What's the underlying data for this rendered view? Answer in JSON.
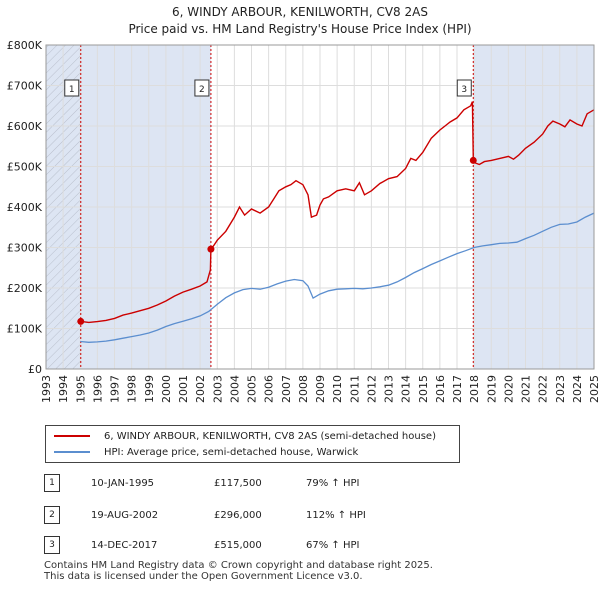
{
  "title_line1": "6, WINDY ARBOUR, KENILWORTH, CV8 2AS",
  "title_line2": "Price paid vs. HM Land Registry's House Price Index (HPI)",
  "colors": {
    "price": "#cc0000",
    "hpi": "#5b8ecf",
    "shade": "#dde5f3",
    "grid": "#dddddd",
    "marker_line": "#cc0000"
  },
  "chart_data": {
    "type": "line",
    "xlim": [
      1993,
      2025
    ],
    "ylim": [
      0,
      800000
    ],
    "y_ticks": [
      0,
      100000,
      200000,
      300000,
      400000,
      500000,
      600000,
      700000,
      800000
    ],
    "y_tick_labels": [
      "£0",
      "£100K",
      "£200K",
      "£300K",
      "£400K",
      "£500K",
      "£600K",
      "£700K",
      "£800K"
    ],
    "x_tick_labels": [
      "1993",
      "1994",
      "1995",
      "1996",
      "1997",
      "1998",
      "1999",
      "2000",
      "2001",
      "2002",
      "2003",
      "2004",
      "2005",
      "2006",
      "2007",
      "2008",
      "2009",
      "2010",
      "2011",
      "2012",
      "2013",
      "2014",
      "2015",
      "2016",
      "2017",
      "2018",
      "2019",
      "2020",
      "2021",
      "2022",
      "2023",
      "2024",
      "2025"
    ],
    "grid": true,
    "shaded_ranges": [
      [
        1993,
        1995.03
      ],
      [
        1995.03,
        2002.63
      ],
      [
        2017.95,
        2025
      ]
    ],
    "hatched_ranges": [
      [
        1993,
        1995.03
      ]
    ],
    "series": [
      {
        "name": "6, WINDY ARBOUR, KENILWORTH, CV8 2AS (semi-detached house)",
        "x": [
          1995.03,
          1995.5,
          1996,
          1996.5,
          1997,
          1997.5,
          1998,
          1998.5,
          1999,
          1999.5,
          2000,
          2000.5,
          2001,
          2001.5,
          2002,
          2002.4,
          2002.6,
          2002.63,
          2002.8,
          2003,
          2003.5,
          2004,
          2004.3,
          2004.6,
          2005,
          2005.5,
          2006,
          2006.3,
          2006.6,
          2007,
          2007.3,
          2007.6,
          2008,
          2008.3,
          2008.5,
          2008.8,
          2009,
          2009.2,
          2009.5,
          2010,
          2010.5,
          2011,
          2011.3,
          2011.6,
          2012,
          2012.5,
          2013,
          2013.5,
          2014,
          2014.3,
          2014.6,
          2015,
          2015.5,
          2016,
          2016.3,
          2016.6,
          2017,
          2017.4,
          2017.8,
          2017.9,
          2017.95,
          2018,
          2018.3,
          2018.6,
          2019,
          2019.5,
          2020,
          2020.3,
          2020.6,
          2021,
          2021.5,
          2022,
          2022.3,
          2022.6,
          2023,
          2023.3,
          2023.6,
          2024,
          2024.3,
          2024.6,
          2025
        ],
        "y": [
          117500,
          115000,
          117000,
          120000,
          125000,
          133000,
          138000,
          144000,
          150000,
          158000,
          168000,
          180000,
          190000,
          197000,
          205000,
          215000,
          245000,
          296000,
          305000,
          318000,
          340000,
          375000,
          400000,
          380000,
          395000,
          385000,
          400000,
          420000,
          440000,
          450000,
          455000,
          465000,
          455000,
          430000,
          375000,
          380000,
          405000,
          420000,
          425000,
          440000,
          445000,
          440000,
          460000,
          430000,
          440000,
          458000,
          470000,
          475000,
          495000,
          520000,
          515000,
          535000,
          570000,
          590000,
          600000,
          610000,
          620000,
          640000,
          650000,
          660000,
          515000,
          510000,
          505000,
          512000,
          515000,
          520000,
          525000,
          518000,
          528000,
          545000,
          560000,
          580000,
          600000,
          612000,
          605000,
          598000,
          615000,
          605000,
          600000,
          630000,
          640000
        ]
      },
      {
        "name": "HPI: Average price, semi-detached house, Warwick",
        "x": [
          1995,
          1995.5,
          1996,
          1996.5,
          1997,
          1997.5,
          1998,
          1998.5,
          1999,
          1999.5,
          2000,
          2000.5,
          2001,
          2001.5,
          2002,
          2002.5,
          2003,
          2003.5,
          2004,
          2004.5,
          2005,
          2005.5,
          2006,
          2006.5,
          2007,
          2007.5,
          2008,
          2008.3,
          2008.6,
          2009,
          2009.5,
          2010,
          2010.5,
          2011,
          2011.5,
          2012,
          2012.5,
          2013,
          2013.5,
          2014,
          2014.5,
          2015,
          2015.5,
          2016,
          2016.5,
          2017,
          2017.5,
          2018,
          2018.5,
          2019,
          2019.5,
          2020,
          2020.5,
          2021,
          2021.5,
          2022,
          2022.5,
          2023,
          2023.5,
          2024,
          2024.5,
          2025
        ],
        "y": [
          68000,
          66000,
          67000,
          69000,
          72000,
          76000,
          80000,
          84000,
          89000,
          96000,
          105000,
          112000,
          118000,
          124000,
          131000,
          142000,
          160000,
          176000,
          188000,
          196000,
          199000,
          197000,
          202000,
          210000,
          217000,
          221000,
          218000,
          205000,
          175000,
          185000,
          193000,
          197000,
          198000,
          199000,
          198000,
          200000,
          203000,
          207000,
          215000,
          226000,
          238000,
          248000,
          258000,
          267000,
          276000,
          285000,
          292000,
          300000,
          304000,
          307000,
          310000,
          311000,
          313000,
          322000,
          330000,
          340000,
          350000,
          357000,
          358000,
          363000,
          375000,
          385000
        ]
      }
    ],
    "sales": [
      {
        "label": "1",
        "x": 1995.03,
        "y": 117500
      },
      {
        "label": "2",
        "x": 2002.63,
        "y": 296000
      },
      {
        "label": "3",
        "x": 2017.95,
        "y": 515000
      }
    ]
  },
  "legend": {
    "price_label": "6, WINDY ARBOUR, KENILWORTH, CV8 2AS (semi-detached house)",
    "hpi_label": "HPI: Average price, semi-detached house, Warwick"
  },
  "sales_table": [
    {
      "num": "1",
      "date": "10-JAN-1995",
      "price": "£117,500",
      "pct": "79% ↑ HPI"
    },
    {
      "num": "2",
      "date": "19-AUG-2002",
      "price": "£296,000",
      "pct": "112% ↑ HPI"
    },
    {
      "num": "3",
      "date": "14-DEC-2017",
      "price": "£515,000",
      "pct": "67% ↑ HPI"
    }
  ],
  "footer_line1": "Contains HM Land Registry data © Crown copyright and database right 2025.",
  "footer_line2": "This data is licensed under the Open Government Licence v3.0."
}
